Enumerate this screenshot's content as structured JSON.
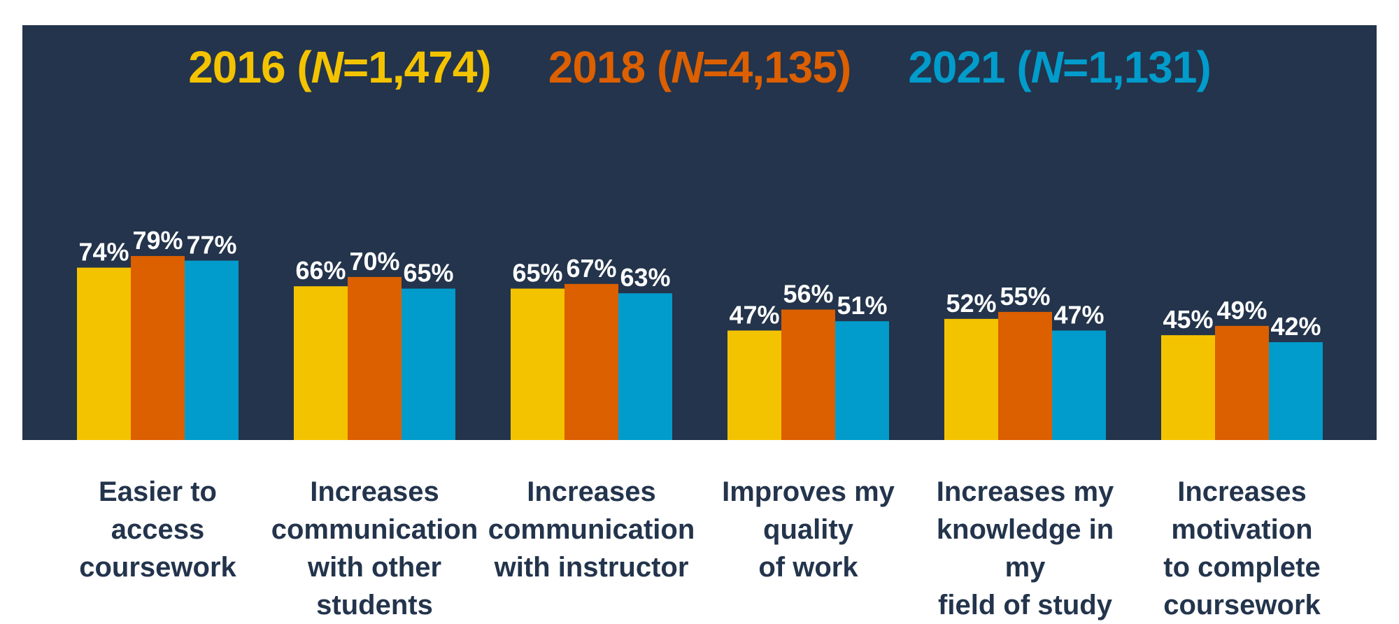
{
  "colors": {
    "background": "#ffffff",
    "panel": "#23344c",
    "label_text": "#ffffff",
    "category_text": "#23344c"
  },
  "legend": [
    {
      "year": "2016",
      "open": " (",
      "n_symbol": "N",
      "n_value": "=1,474)",
      "color": "#f4c300"
    },
    {
      "year": "2018",
      "open": " (",
      "n_symbol": "N",
      "n_value": "=4,135)",
      "color": "#dc5f00"
    },
    {
      "year": "2021",
      "open": " (",
      "n_symbol": "N",
      "n_value": "=1,131)",
      "color": "#019ccb"
    }
  ],
  "chart_data": {
    "type": "bar",
    "categories": [
      "Easier to\naccess\ncoursework",
      "Increases\ncommunication\nwith other students",
      "Increases\ncommunication\nwith instructor",
      "Improves my\nquality\nof work",
      "Increases my\nknowledge in my\nfield of study",
      "Increases motivation\nto complete\ncoursework"
    ],
    "series": [
      {
        "name": "2016 (N=1,474)",
        "color": "#f4c300",
        "values": [
          74,
          66,
          65,
          47,
          52,
          45
        ],
        "labels": [
          "74%",
          "66%",
          "65%",
          "47%",
          "52%",
          "45%"
        ]
      },
      {
        "name": "2018 (N=4,135)",
        "color": "#dc5f00",
        "values": [
          79,
          70,
          67,
          56,
          55,
          49
        ],
        "labels": [
          "79%",
          "70%",
          "67%",
          "56%",
          "55%",
          "49%"
        ]
      },
      {
        "name": "2021 (N=1,131)",
        "color": "#019ccb",
        "values": [
          77,
          65,
          63,
          51,
          47,
          42
        ],
        "labels": [
          "77%",
          "65%",
          "63%",
          "51%",
          "47%",
          "42%"
        ]
      }
    ],
    "ylim": [
      0,
      100
    ],
    "grid": false,
    "legend_position": "top"
  }
}
